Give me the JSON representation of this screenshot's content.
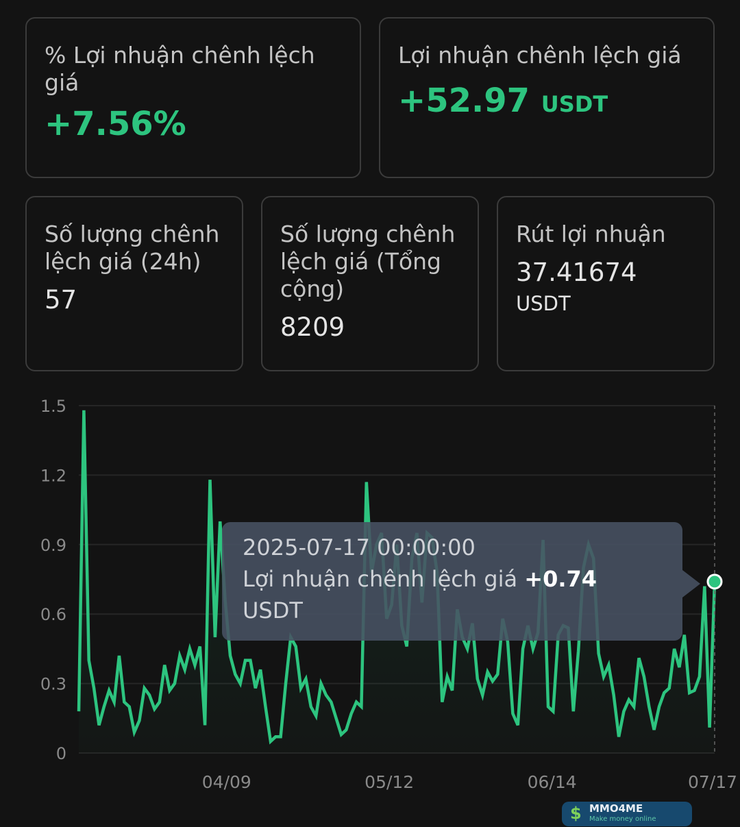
{
  "cards": {
    "profit_pct": {
      "label": "% Lợi nhuận chênh lệch giá",
      "value": "+7.56%"
    },
    "profit": {
      "label": "Lợi nhuận chênh lệch giá",
      "value": "+52.97",
      "unit": "USDT"
    },
    "count_24h": {
      "label": "Số lượng chênh lệch giá (24h)",
      "value": "57"
    },
    "count_total": {
      "label": "Số lượng chênh lệch giá (Tổng cộng)",
      "value": "8209"
    },
    "withdraw": {
      "label": "Rút lợi nhuận",
      "value": "37.41674",
      "unit": "USDT"
    }
  },
  "colors": {
    "accent": "#2dc47f",
    "background": "#131313",
    "tooltip": "#485263"
  },
  "tooltip": {
    "date": "2025-07-17 00:00:00",
    "label": "Lợi nhuận chênh lệch giá",
    "value": "+0.74",
    "unit": "USDT"
  },
  "watermark": {
    "name": "MMO4ME",
    "tagline": "Make money online",
    "icon": "dollar-icon"
  },
  "chart_data": {
    "type": "area",
    "x_range": [
      "2025-03-10",
      "2025-07-17"
    ],
    "xticks": [
      {
        "date": "2025-04-09",
        "label": "04/09"
      },
      {
        "date": "2025-05-12",
        "label": "05/12"
      },
      {
        "date": "2025-06-14",
        "label": "06/14"
      },
      {
        "date": "2025-07-17",
        "label": "07/17"
      }
    ],
    "yticks": [
      "0",
      "0.3",
      "0.6",
      "0.9",
      "1.2",
      "1.5"
    ],
    "ylim": [
      0,
      1.5
    ],
    "grid": true,
    "values": [
      0.18,
      1.48,
      0.4,
      0.28,
      0.12,
      0.2,
      0.27,
      0.22,
      0.42,
      0.22,
      0.2,
      0.09,
      0.14,
      0.28,
      0.25,
      0.19,
      0.22,
      0.38,
      0.27,
      0.3,
      0.42,
      0.36,
      0.45,
      0.38,
      0.46,
      0.12,
      1.18,
      0.5,
      1.0,
      0.66,
      0.42,
      0.34,
      0.3,
      0.4,
      0.4,
      0.28,
      0.36,
      0.2,
      0.05,
      0.07,
      0.07,
      0.3,
      0.5,
      0.46,
      0.28,
      0.32,
      0.2,
      0.16,
      0.3,
      0.25,
      0.22,
      0.15,
      0.08,
      0.1,
      0.17,
      0.22,
      0.2,
      1.17,
      0.78,
      0.9,
      0.95,
      0.58,
      0.64,
      0.9,
      0.55,
      0.46,
      0.84,
      0.95,
      0.65,
      0.95,
      0.93,
      0.78,
      0.22,
      0.33,
      0.27,
      0.62,
      0.5,
      0.45,
      0.56,
      0.32,
      0.25,
      0.35,
      0.31,
      0.34,
      0.58,
      0.48,
      0.17,
      0.12,
      0.45,
      0.55,
      0.45,
      0.52,
      0.92,
      0.2,
      0.18,
      0.51,
      0.55,
      0.54,
      0.18,
      0.44,
      0.8,
      0.9,
      0.84,
      0.43,
      0.33,
      0.38,
      0.25,
      0.07,
      0.18,
      0.23,
      0.2,
      0.41,
      0.33,
      0.2,
      0.1,
      0.2,
      0.26,
      0.28,
      0.45,
      0.37,
      0.51,
      0.26,
      0.27,
      0.33,
      0.72,
      0.11,
      0.74
    ]
  }
}
